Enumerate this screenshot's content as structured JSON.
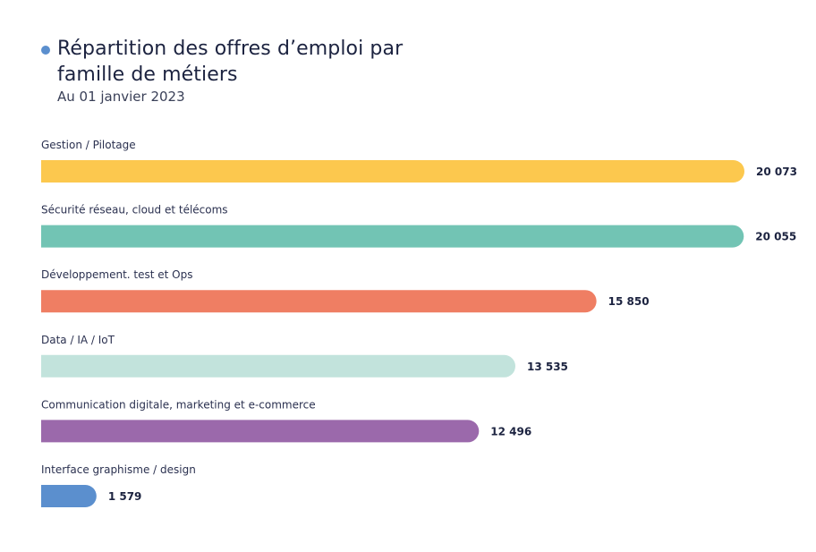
{
  "title": "Répartition des offres d’emploi par famille de métiers",
  "subtitle": "Au 01 janvier 2023",
  "chart_data": {
    "type": "bar",
    "orientation": "horizontal",
    "title": "Répartition des offres d’emploi par famille de métiers",
    "subtitle": "Au 01 janvier 2023",
    "categories": [
      "Gestion / Pilotage",
      "Sécurité réseau, cloud et télécoms",
      "Développement. test et Ops",
      "Data / IA / IoT",
      "Communication digitale, marketing et e-commerce",
      "Interface graphisme / design"
    ],
    "values": [
      20073,
      20055,
      15850,
      13535,
      12496,
      1579
    ],
    "value_labels": [
      "20 073",
      "20 055",
      "15 850",
      "13 535",
      "12 496",
      "1 579"
    ],
    "colors": [
      "#fcc84e",
      "#72c4b4",
      "#ef7e63",
      "#c2e3dc",
      "#9b69ab",
      "#5b8fce"
    ],
    "accent_color": "#5b8fce",
    "grid": false,
    "legend": "none"
  }
}
